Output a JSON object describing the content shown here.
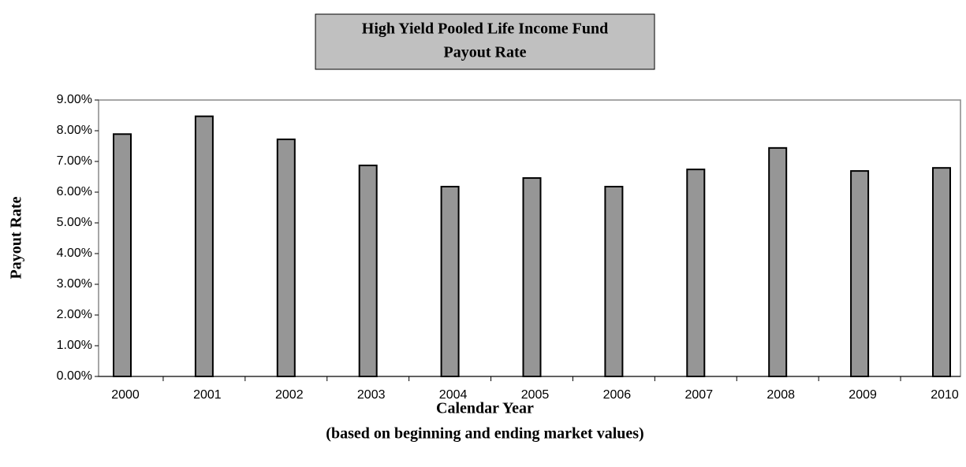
{
  "chart_data": {
    "type": "bar",
    "title": "High Yield Pooled Life Income Fund",
    "subtitle": "Payout Rate",
    "x_label": "Calendar Year",
    "x_label_note": "(based on beginning and ending market values)",
    "y_label": "Payout Rate",
    "categories": [
      "2000",
      "2001",
      "2002",
      "2003",
      "2004",
      "2005",
      "2006",
      "2007",
      "2008",
      "2009",
      "2010"
    ],
    "values": [
      7.89,
      8.47,
      7.72,
      6.87,
      6.18,
      6.46,
      6.18,
      6.74,
      7.44,
      6.69,
      6.79
    ],
    "color": "#969696",
    "ylim": [
      0,
      9
    ],
    "yticks": [
      {
        "value": 0,
        "label": "0.00%"
      },
      {
        "value": 1,
        "label": "1.00%"
      },
      {
        "value": 2,
        "label": "2.00%"
      },
      {
        "value": 3,
        "label": "3.00%"
      },
      {
        "value": 4,
        "label": "4.00%"
      },
      {
        "value": 5,
        "label": "5.00%"
      },
      {
        "value": 6,
        "label": "6.00%"
      },
      {
        "value": 7,
        "label": "7.00%"
      },
      {
        "value": 8,
        "label": "8.00%"
      },
      {
        "value": 9,
        "label": "9.00%"
      }
    ],
    "grid": false
  }
}
